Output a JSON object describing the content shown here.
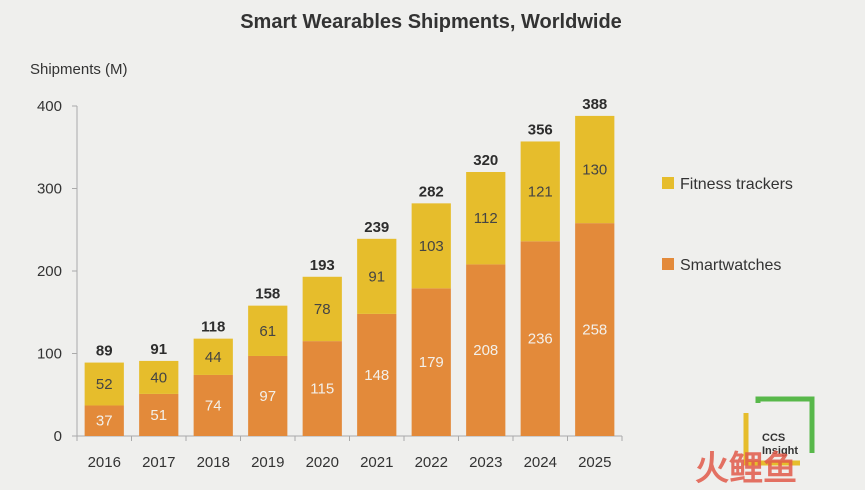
{
  "chart_data": {
    "type": "bar",
    "stacked": true,
    "title": "Smart Wearables Shipments, Worldwide",
    "ylabel": "Shipments (M)",
    "xlabel": "",
    "ylim": [
      0,
      400
    ],
    "yticks": [
      0,
      100,
      200,
      300,
      400
    ],
    "categories": [
      "2016",
      "2017",
      "2018",
      "2019",
      "2020",
      "2021",
      "2022",
      "2023",
      "2024",
      "2025"
    ],
    "series": [
      {
        "name": "Smartwatches",
        "color": "#e38a3a",
        "values": [
          37,
          51,
          74,
          97,
          115,
          148,
          179,
          208,
          236,
          258
        ]
      },
      {
        "name": "Fitness trackers",
        "color": "#e6bd2c",
        "values": [
          52,
          40,
          44,
          61,
          78,
          91,
          103,
          112,
          121,
          130
        ]
      }
    ],
    "totals": [
      89,
      91,
      118,
      158,
      193,
      239,
      282,
      320,
      356,
      388
    ],
    "legend": [
      "Fitness trackers",
      "Smartwatches"
    ],
    "legend_position": "right",
    "grid": false
  },
  "logo": {
    "text_line1": "CCS",
    "text_line2": "Insight",
    "colors": [
      "#58b84a",
      "#e6bd2c"
    ]
  },
  "watermark": {
    "text": "火鲤鱼",
    "color": "#e25a4a"
  }
}
